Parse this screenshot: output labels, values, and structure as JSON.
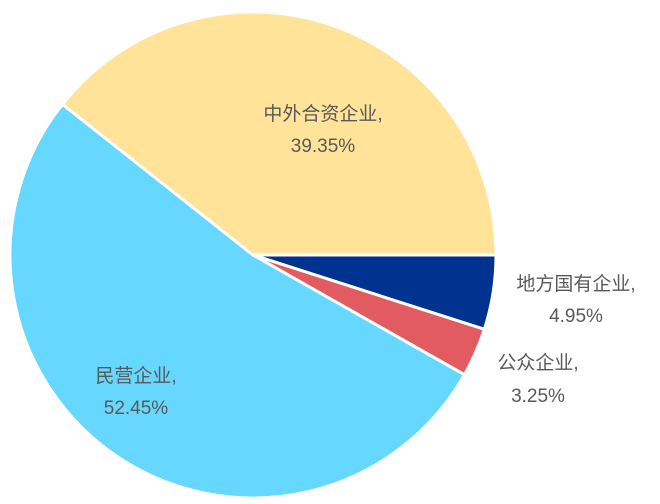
{
  "chart_data": {
    "type": "pie",
    "slices": [
      {
        "label": "地方国有企业,",
        "value": 4.95,
        "value_text": "4.95%",
        "color": "#00338F"
      },
      {
        "label": "公众企业,",
        "value": 3.25,
        "value_text": "3.25%",
        "color": "#E15B60"
      },
      {
        "label": "民营企业,",
        "value": 52.45,
        "value_text": "52.45%",
        "color": "#66D8FF"
      },
      {
        "label": "中外合资企业,",
        "value": 39.35,
        "value_text": "39.35%",
        "color": "#FFE399"
      }
    ],
    "start_angle_deg": 0,
    "direction": "clockwise",
    "legend": "none",
    "slice_border": "#ffffff"
  }
}
